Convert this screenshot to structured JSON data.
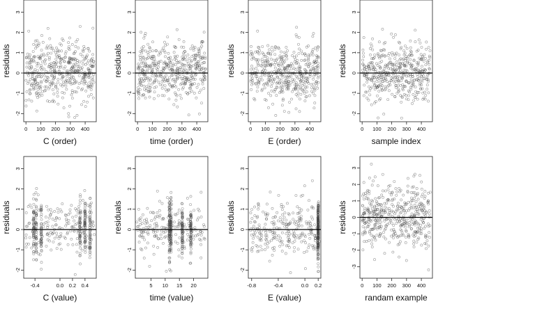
{
  "chart_data": [
    {
      "type": "scatter",
      "title": "",
      "xlabel": "C (order)",
      "ylabel": "residuals",
      "xlim": [
        -15,
        475
      ],
      "ylim": [
        -2.4,
        3.6
      ],
      "xticks": [
        0,
        100,
        200,
        300,
        400
      ],
      "xtick_labels": [
        "0",
        "100",
        "200",
        "300",
        "400"
      ],
      "yticks": [
        -2,
        -1,
        0,
        1,
        2,
        3
      ],
      "ytick_labels": [
        "-2",
        "-1",
        "0",
        "1",
        "2",
        "3"
      ],
      "reference_line_y": 0,
      "x_distribution": "uniform",
      "x_range": [
        0,
        460
      ],
      "n_points": 460,
      "y_mean": 0.05,
      "y_sd": 0.72,
      "seed": 11
    },
    {
      "type": "scatter",
      "title": "",
      "xlabel": "time (order)",
      "ylabel": "residuals",
      "xlim": [
        -15,
        475
      ],
      "ylim": [
        -2.4,
        3.6
      ],
      "xticks": [
        0,
        100,
        200,
        300,
        400
      ],
      "xtick_labels": [
        "0",
        "100",
        "200",
        "300",
        "400"
      ],
      "yticks": [
        -2,
        -1,
        0,
        1,
        2,
        3
      ],
      "ytick_labels": [
        "-2",
        "-1",
        "0",
        "1",
        "2",
        "3"
      ],
      "reference_line_y": 0,
      "x_distribution": "uniform",
      "x_range": [
        0,
        460
      ],
      "n_points": 460,
      "y_mean": 0.05,
      "y_sd": 0.72,
      "seed": 23
    },
    {
      "type": "scatter",
      "title": "",
      "xlabel": "E (order)",
      "ylabel": "residuals",
      "xlim": [
        -15,
        475
      ],
      "ylim": [
        -2.4,
        3.6
      ],
      "xticks": [
        0,
        100,
        200,
        300,
        400
      ],
      "xtick_labels": [
        "0",
        "100",
        "200",
        "300",
        "400"
      ],
      "yticks": [
        -2,
        -1,
        0,
        1,
        2,
        3
      ],
      "ytick_labels": [
        "-2",
        "-1",
        "0",
        "1",
        "2",
        "3"
      ],
      "reference_line_y": 0,
      "x_distribution": "uniform",
      "x_range": [
        0,
        460
      ],
      "n_points": 460,
      "y_mean": 0.05,
      "y_sd": 0.72,
      "seed": 37
    },
    {
      "type": "scatter",
      "title": "",
      "xlabel": "sample index",
      "ylabel": "residuals",
      "xlim": [
        -15,
        475
      ],
      "ylim": [
        -2.4,
        3.6
      ],
      "xticks": [
        0,
        100,
        200,
        300,
        400
      ],
      "xtick_labels": [
        "0",
        "100",
        "200",
        "300",
        "400"
      ],
      "yticks": [
        -2,
        -1,
        0,
        1,
        2,
        3
      ],
      "ytick_labels": [
        "-2",
        "-1",
        "0",
        "1",
        "2",
        "3"
      ],
      "reference_line_y": 0,
      "x_distribution": "uniform",
      "x_range": [
        0,
        460
      ],
      "n_points": 460,
      "y_mean": 0.05,
      "y_sd": 0.72,
      "seed": 41
    },
    {
      "type": "scatter",
      "title": "",
      "xlabel": "C (value)",
      "ylabel": "residuals",
      "xlim": [
        -0.58,
        0.58
      ],
      "ylim": [
        -2.4,
        3.6
      ],
      "xticks": [
        -0.4,
        0,
        0.2,
        0.4
      ],
      "xtick_labels": [
        "-0.4",
        "0.0",
        "0.2",
        "0.4"
      ],
      "yticks": [
        -2,
        -1,
        0,
        1,
        2,
        3
      ],
      "ytick_labels": [
        "-2",
        "-1",
        "0",
        "1",
        "2",
        "3"
      ],
      "reference_line_y": 0,
      "x_distribution": "clusters",
      "x_clusters": [
        -0.42,
        -0.38,
        -0.3,
        0.32,
        0.4,
        0.48
      ],
      "x_range": [
        -0.55,
        0.55
      ],
      "n_points": 460,
      "y_mean": 0.05,
      "y_sd": 0.72,
      "seed": 53
    },
    {
      "type": "scatter",
      "title": "",
      "xlabel": "time (value)",
      "ylabel": "residuals",
      "xlim": [
        -0.5,
        25
      ],
      "ylim": [
        -2.4,
        3.6
      ],
      "xticks": [
        5,
        10,
        15,
        20
      ],
      "xtick_labels": [
        "5",
        "10",
        "15",
        "20"
      ],
      "yticks": [
        -2,
        -1,
        0,
        1,
        2,
        3
      ],
      "ytick_labels": [
        "-2",
        "-1",
        "0",
        "1",
        "2",
        "3"
      ],
      "reference_line_y": 0,
      "x_distribution": "clusters",
      "x_clusters": [
        11.5,
        12,
        16,
        19
      ],
      "x_range": [
        0,
        24
      ],
      "n_points": 460,
      "y_mean": 0.05,
      "y_sd": 0.72,
      "seed": 61
    },
    {
      "type": "scatter",
      "title": "",
      "xlabel": "E (value)",
      "ylabel": "residuals",
      "xlim": [
        -0.85,
        0.24
      ],
      "ylim": [
        -2.4,
        3.6
      ],
      "xticks": [
        -0.8,
        -0.4,
        0,
        0.2
      ],
      "xtick_labels": [
        "-0.8",
        "-0.4",
        "0.0",
        "0.2"
      ],
      "yticks": [
        -2,
        -1,
        0,
        1,
        2,
        3
      ],
      "ytick_labels": [
        "-2",
        "-1",
        "0",
        "1",
        "2",
        "3"
      ],
      "reference_line_y": 0,
      "x_distribution": "pile",
      "x_pile": 0.2,
      "x_range": [
        -0.82,
        0.22
      ],
      "n_points": 460,
      "y_mean": 0.05,
      "y_sd": 0.72,
      "seed": 71
    },
    {
      "type": "scatter",
      "title": "",
      "xlabel": "randam example",
      "ylabel": "residuals",
      "xlim": [
        -15,
        475
      ],
      "ylim": [
        -3.7,
        3.7
      ],
      "xticks": [
        0,
        100,
        200,
        300,
        400
      ],
      "xtick_labels": [
        "0",
        "100",
        "200",
        "300",
        "400"
      ],
      "yticks": [
        -3,
        -2,
        -1,
        0,
        1,
        2,
        3
      ],
      "ytick_labels": [
        "-3",
        "-2",
        "-1",
        "0",
        "1",
        "2",
        "3"
      ],
      "reference_line_y": 0,
      "x_distribution": "uniform",
      "x_range": [
        0,
        460
      ],
      "n_points": 460,
      "y_mean": 0.05,
      "y_sd": 1.0,
      "seed": 89
    }
  ]
}
